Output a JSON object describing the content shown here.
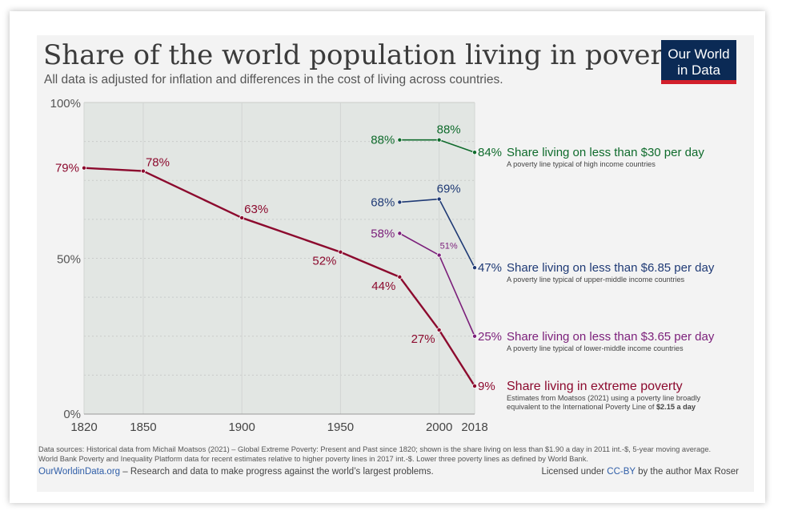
{
  "header": {
    "title": "Share of the world population living in poverty",
    "subtitle": "All data is adjusted for inflation and differences in the cost of living across countries.",
    "logo_line1": "Our World",
    "logo_line2": "in Data"
  },
  "footer": {
    "sources_line1": "Data sources: Historical data from Michail Moatsos (2021) – Global Extreme Poverty: Present and Past since 1820; shown is the share living on less than $1.90 a day in 2011 int.-$, 5-year moving average.",
    "sources_line2": "World Bank Poverty and Inequality Platform data for recent estimates relative to higher poverty lines in 2017 int.-$. Lower three poverty lines as defined by World Bank.",
    "site": "OurWorldinData.org",
    "tagline": " – Research and data to make progress against the world’s largest problems.",
    "license_pre": "Licensed under ",
    "license_link": "CC-BY",
    "license_post": " by the author Max Roser"
  },
  "colors": {
    "extreme": "#8c0a2e",
    "line365": "#7b1f7a",
    "line685": "#1f3a75",
    "line30": "#0f6b2c",
    "logo_bg": "#0b2a55",
    "logo_bar": "#d21f2b",
    "link": "#2f5ea8",
    "plot_bg": "#e2e6e3"
  },
  "chart_data": {
    "type": "line",
    "title": "Share of the world population living in poverty",
    "ylim": [
      0,
      100
    ],
    "xlim": [
      1820,
      2018
    ],
    "y_ticks": [
      0,
      50,
      100
    ],
    "y_tick_labels": [
      "0%",
      "50%",
      "100%"
    ],
    "x_ticks": [
      1820,
      1850,
      1900,
      1950,
      2000,
      2018
    ],
    "grid": true,
    "series": [
      {
        "key": "extreme",
        "name": "Share living in extreme poverty",
        "note_lines": [
          "Estimates from Moatsos (2021) using a poverty line broadly",
          "equivalent to the International Poverty Line of "
        ],
        "note_bold": "$2.15 a day",
        "end_label": "9%",
        "color": "#8c0a2e",
        "x": [
          1820,
          1850,
          1900,
          1950,
          1980,
          2000,
          2018
        ],
        "y": [
          79,
          78,
          63,
          52,
          44,
          27,
          9
        ],
        "labels": [
          "79%",
          "78%",
          "63%",
          "52%",
          "44%",
          "27%",
          null
        ],
        "label_pos": [
          "left",
          "above-right",
          "above-right",
          "below-left",
          "below-left",
          "below-left",
          null
        ]
      },
      {
        "key": "line365",
        "name": "Share living on less than $3.65 per day",
        "note_lines": [
          "A poverty line typical of lower-middle income countries"
        ],
        "end_label": "25%",
        "color": "#7b1f7a",
        "x": [
          1980,
          2000,
          2018
        ],
        "y": [
          58,
          51,
          25
        ],
        "labels": [
          "58%",
          "51%",
          null
        ],
        "label_pos": [
          "left",
          "above-right-small",
          null
        ]
      },
      {
        "key": "line685",
        "name": "Share living on less than $6.85 per day",
        "note_lines": [
          "A poverty line typical of upper-middle income countries"
        ],
        "end_label": "47%",
        "color": "#1f3a75",
        "x": [
          1980,
          2000,
          2018
        ],
        "y": [
          68,
          69,
          47
        ],
        "labels": [
          "68%",
          "69%",
          null
        ],
        "label_pos": [
          "left",
          "above",
          null
        ]
      },
      {
        "key": "line30",
        "name": "Share living on less than $30 per day",
        "note_lines": [
          "A poverty line typical of high income countries"
        ],
        "end_label": "84%",
        "color": "#0f6b2c",
        "x": [
          1980,
          2000,
          2018
        ],
        "y": [
          88,
          88,
          84
        ],
        "labels": [
          "88%",
          "88%",
          null
        ],
        "label_pos": [
          "left",
          "above",
          null
        ]
      }
    ]
  }
}
